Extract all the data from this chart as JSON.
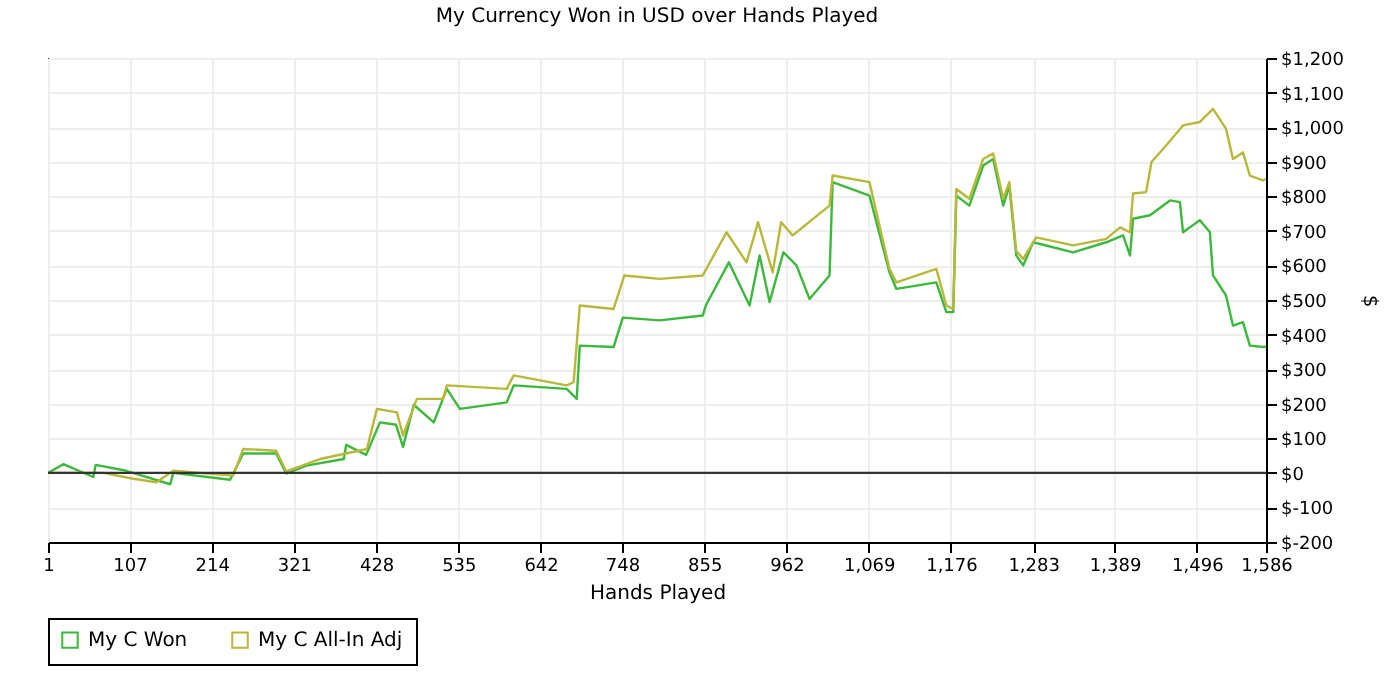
{
  "chart_data": {
    "type": "line",
    "title": "My Currency Won in USD over Hands Played",
    "xlabel": "Hands Played",
    "ylabel": "$",
    "series": [
      {
        "name": "My C Won",
        "color": "#3cb83c",
        "x": [
          1,
          21,
          60,
          63,
          103,
          160,
          164,
          238,
          255,
          298,
          311,
          337,
          386,
          389,
          415,
          433,
          454,
          463,
          477,
          503,
          520,
          537,
          598,
          607,
          676,
          689,
          693,
          737,
          749,
          797,
          853,
          857,
          887,
          914,
          927,
          940,
          958,
          975,
          992,
          1018,
          1022,
          1070,
          1096,
          1105,
          1157,
          1170,
          1179,
          1183,
          1200,
          1218,
          1231,
          1244,
          1252,
          1261,
          1270,
          1283,
          1335,
          1378,
          1400,
          1409,
          1413,
          1435,
          1461,
          1474,
          1478,
          1500,
          1513,
          1517,
          1534,
          1543,
          1556,
          1565,
          1582,
          1586
        ],
        "values": [
          0,
          25,
          -12,
          23,
          6,
          -33,
          0,
          -20,
          56,
          56,
          -2,
          21,
          40,
          81,
          52,
          146,
          139,
          75,
          197,
          146,
          243,
          185,
          204,
          253,
          243,
          214,
          368,
          364,
          449,
          441,
          455,
          484,
          609,
          484,
          629,
          494,
          638,
          600,
          503,
          571,
          841,
          802,
          580,
          532,
          551,
          465,
          465,
          802,
          773,
          889,
          908,
          773,
          831,
          629,
          600,
          667,
          638,
          667,
          687,
          629,
          735,
          745,
          788,
          783,
          696,
          731,
          696,
          571,
          513,
          426,
          436,
          368,
          364,
          365
        ]
      },
      {
        "name": "My C All-In Adj",
        "color": "#b8b83a",
        "x": [
          1,
          34,
          73,
          112,
          142,
          164,
          242,
          255,
          298,
          311,
          355,
          416,
          429,
          455,
          463,
          481,
          515,
          520,
          598,
          607,
          676,
          685,
          693,
          737,
          751,
          797,
          853,
          884,
          910,
          925,
          944,
          955,
          970,
          1018,
          1022,
          1070,
          1096,
          1105,
          1157,
          1170,
          1179,
          1183,
          1200,
          1218,
          1231,
          1244,
          1252,
          1261,
          1270,
          1287,
          1335,
          1378,
          1396,
          1409,
          1413,
          1430,
          1437,
          1456,
          1478,
          1500,
          1517,
          1534,
          1543,
          1556,
          1565,
          1582,
          1586
        ],
        "values": [
          0,
          0,
          0,
          -17,
          -27,
          6,
          -8,
          69,
          64,
          4,
          40,
          69,
          185,
          175,
          108,
          214,
          214,
          253,
          243,
          282,
          253,
          262,
          484,
          474,
          571,
          561,
          571,
          696,
          609,
          725,
          580,
          725,
          687,
          773,
          860,
          841,
          590,
          551,
          590,
          484,
          474,
          821,
          793,
          908,
          924,
          793,
          841,
          642,
          619,
          681,
          658,
          677,
          710,
          696,
          808,
          812,
          899,
          947,
          1005,
          1015,
          1053,
          995,
          908,
          927,
          860,
          846,
          850
        ]
      }
    ],
    "xlim": [
      1,
      1586
    ],
    "xticks": [
      1,
      107,
      214,
      321,
      428,
      535,
      642,
      748,
      855,
      962,
      {
        "value": 1069,
        "label": "1,069"
      },
      {
        "value": 1176,
        "label": "1,176"
      },
      {
        "value": 1283,
        "label": "1,283"
      },
      {
        "value": 1389,
        "label": "1,389"
      },
      {
        "value": 1496,
        "label": "1,496"
      },
      {
        "value": 1586,
        "label": "1,586"
      }
    ],
    "ylim": [
      -200,
      1200
    ],
    "yticks": [
      {
        "value": -200,
        "label": "$-200"
      },
      {
        "value": -100,
        "label": "$-100"
      },
      {
        "value": 0,
        "label": "$0"
      },
      {
        "value": 100,
        "label": "$100"
      },
      {
        "value": 200,
        "label": "$200"
      },
      {
        "value": 300,
        "label": "$300"
      },
      {
        "value": 400,
        "label": "$400"
      },
      {
        "value": 500,
        "label": "$500"
      },
      {
        "value": 600,
        "label": "$600"
      },
      {
        "value": 700,
        "label": "$700"
      },
      {
        "value": 800,
        "label": "$800"
      },
      {
        "value": 900,
        "label": "$900"
      },
      {
        "value": 1000,
        "label": "$1,000"
      },
      {
        "value": 1100,
        "label": "$1,100"
      },
      {
        "value": 1200,
        "label": "$1,200"
      }
    ],
    "ref_lines": [
      {
        "axis": "y",
        "value": 0,
        "color": "#333333"
      }
    ],
    "grid": true,
    "legend": "bottom left",
    "marker": "none",
    "line_style": "solid"
  }
}
